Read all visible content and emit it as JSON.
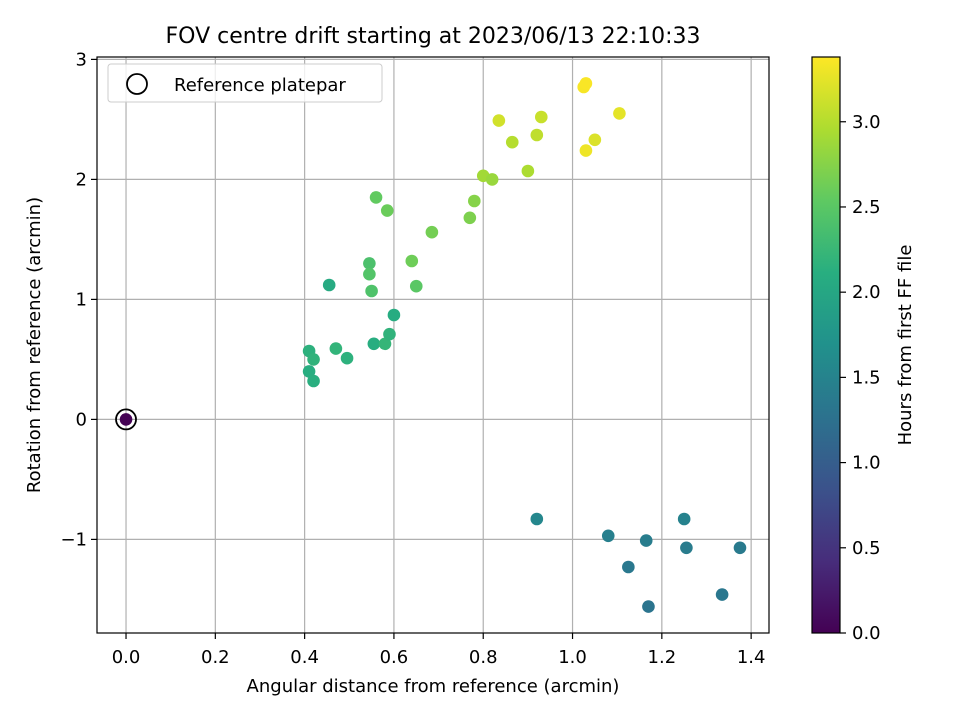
{
  "chart_data": {
    "type": "scatter",
    "title": "FOV centre drift starting at 2023/06/13 22:10:33",
    "xlabel": "Angular distance from reference (arcmin)",
    "ylabel": "Rotation from reference (arcmin)",
    "xlim": [
      -0.065,
      1.44
    ],
    "ylim": [
      -1.78,
      3.02
    ],
    "xticks": [
      0.0,
      0.2,
      0.4,
      0.6,
      0.8,
      1.0,
      1.2,
      1.4
    ],
    "xtick_labels": [
      "0.0",
      "0.2",
      "0.4",
      "0.6",
      "0.8",
      "1.0",
      "1.2",
      "1.4"
    ],
    "yticks": [
      -1,
      0,
      1,
      2,
      3
    ],
    "ytick_labels": [
      "−1",
      "0",
      "1",
      "2",
      "3"
    ],
    "grid": true,
    "colormap": "viridis",
    "colorbar": {
      "label": "Hours from first FF file",
      "range": [
        0.0,
        3.38
      ],
      "ticks": [
        0.0,
        0.5,
        1.0,
        1.5,
        2.0,
        2.5,
        3.0
      ],
      "tick_labels": [
        "0.0",
        "0.5",
        "1.0",
        "1.5",
        "2.0",
        "2.5",
        "3.0"
      ]
    },
    "legend": {
      "position": "top-left",
      "entries": [
        {
          "label": "Reference platepar",
          "marker": "open-circle"
        }
      ]
    },
    "reference_point": {
      "x": 0.0,
      "y": 0.0
    },
    "points": [
      {
        "x": 0.0,
        "y": 0.0,
        "c": 0.0
      },
      {
        "x": 0.92,
        "y": -0.83,
        "c": 1.55
      },
      {
        "x": 1.08,
        "y": -0.97,
        "c": 1.45
      },
      {
        "x": 1.165,
        "y": -1.01,
        "c": 1.42
      },
      {
        "x": 1.125,
        "y": -1.23,
        "c": 1.35
      },
      {
        "x": 1.17,
        "y": -1.56,
        "c": 1.3
      },
      {
        "x": 1.25,
        "y": -0.83,
        "c": 1.48
      },
      {
        "x": 1.255,
        "y": -1.07,
        "c": 1.4
      },
      {
        "x": 1.335,
        "y": -1.46,
        "c": 1.33
      },
      {
        "x": 1.375,
        "y": -1.07,
        "c": 1.38
      },
      {
        "x": 0.41,
        "y": 0.57,
        "c": 2.15
      },
      {
        "x": 0.41,
        "y": 0.4,
        "c": 2.1
      },
      {
        "x": 0.42,
        "y": 0.32,
        "c": 2.12
      },
      {
        "x": 0.42,
        "y": 0.5,
        "c": 2.18
      },
      {
        "x": 0.47,
        "y": 0.59,
        "c": 2.2
      },
      {
        "x": 0.495,
        "y": 0.51,
        "c": 2.16
      },
      {
        "x": 0.455,
        "y": 1.12,
        "c": 2.05
      },
      {
        "x": 0.555,
        "y": 0.63,
        "c": 2.1
      },
      {
        "x": 0.58,
        "y": 0.63,
        "c": 2.22
      },
      {
        "x": 0.59,
        "y": 0.71,
        "c": 2.18
      },
      {
        "x": 0.6,
        "y": 0.87,
        "c": 2.08
      },
      {
        "x": 0.545,
        "y": 1.3,
        "c": 2.4
      },
      {
        "x": 0.545,
        "y": 1.21,
        "c": 2.45
      },
      {
        "x": 0.55,
        "y": 1.07,
        "c": 2.42
      },
      {
        "x": 0.56,
        "y": 1.85,
        "c": 2.55
      },
      {
        "x": 0.585,
        "y": 1.74,
        "c": 2.6
      },
      {
        "x": 0.64,
        "y": 1.32,
        "c": 2.62
      },
      {
        "x": 0.65,
        "y": 1.11,
        "c": 2.5
      },
      {
        "x": 0.685,
        "y": 1.56,
        "c": 2.65
      },
      {
        "x": 0.77,
        "y": 1.68,
        "c": 2.7
      },
      {
        "x": 0.78,
        "y": 1.82,
        "c": 2.75
      },
      {
        "x": 0.8,
        "y": 2.03,
        "c": 2.9
      },
      {
        "x": 0.82,
        "y": 2.0,
        "c": 2.85
      },
      {
        "x": 0.835,
        "y": 2.49,
        "c": 3.15
      },
      {
        "x": 0.865,
        "y": 2.31,
        "c": 3.0
      },
      {
        "x": 0.9,
        "y": 2.07,
        "c": 2.95
      },
      {
        "x": 0.92,
        "y": 2.37,
        "c": 3.05
      },
      {
        "x": 0.93,
        "y": 2.52,
        "c": 3.1
      },
      {
        "x": 1.025,
        "y": 2.77,
        "c": 3.35
      },
      {
        "x": 1.03,
        "y": 2.8,
        "c": 3.36
      },
      {
        "x": 1.03,
        "y": 2.24,
        "c": 3.3
      },
      {
        "x": 1.05,
        "y": 2.33,
        "c": 3.2
      },
      {
        "x": 1.105,
        "y": 2.55,
        "c": 3.25
      }
    ]
  }
}
